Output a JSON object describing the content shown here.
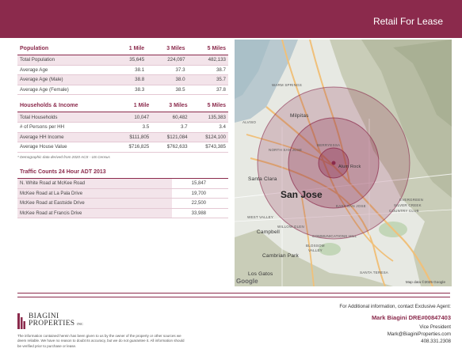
{
  "header": {
    "title": "Retail For Lease"
  },
  "demographics": {
    "population": {
      "title": "Population",
      "cols": [
        "1 Mile",
        "3 Miles",
        "5 Miles"
      ],
      "rows": [
        {
          "label": "Total Population",
          "v": [
            "35,645",
            "224,097",
            "482,133"
          ]
        },
        {
          "label": "Average Age",
          "v": [
            "38.1",
            "37.3",
            "38.7"
          ]
        },
        {
          "label": "Average Age (Male)",
          "v": [
            "38.8",
            "38.0",
            "35.7"
          ]
        },
        {
          "label": "Average Age (Female)",
          "v": [
            "38.3",
            "38.5",
            "37.8"
          ]
        }
      ]
    },
    "households": {
      "title": "Households & Income",
      "cols": [
        "1 Mile",
        "3 Miles",
        "5 Miles"
      ],
      "rows": [
        {
          "label": "Total Households",
          "v": [
            "10,047",
            "60,482",
            "135,383"
          ]
        },
        {
          "label": "# of Persons per HH",
          "v": [
            "3.5",
            "3.7",
            "3.4"
          ]
        },
        {
          "label": "Average HH Income",
          "v": [
            "$111,805",
            "$121,084",
            "$124,100"
          ]
        },
        {
          "label": "Average House Value",
          "v": [
            "$716,825",
            "$762,633",
            "$743,385"
          ]
        }
      ]
    },
    "footnote": "* Demographic data derived from 2020 ACS - US Census"
  },
  "traffic": {
    "title": "Traffic Counts 24 Hour ADT 2013",
    "rows": [
      {
        "label": "N. White Road at McKee Road",
        "value": "15,847"
      },
      {
        "label": "McKee Road at La Pala Drive",
        "value": "19,700"
      },
      {
        "label": "McKee Road at Eastside Drive",
        "value": "22,500"
      },
      {
        "label": "McKee Road at Francis Drive",
        "value": "33,988"
      }
    ]
  },
  "map": {
    "labels": {
      "warm_springs": "WARM SPRINGS",
      "milpitas": "Milpitas",
      "alviso": "ALVISO",
      "north_san_jose": "NORTH SAN JOSE",
      "berryessa": "BERRYESSA",
      "santa_clara": "Santa Clara",
      "alum_rock": "Alum Rock",
      "san_jose": "San Jose",
      "east_san_jose": "EAST SAN JOSE",
      "west_valley": "WEST VALLEY",
      "evergreen": "EVERGREEN",
      "silver_creek": "SILVER CREEK",
      "country_club": "COUNTRY CLUB",
      "willow_glen": "WILLOW GLEN",
      "campbell": "Campbell",
      "communications_hill": "COMMUNICATIONS HILL",
      "blossom_valley": "BLOSSOM",
      "blossom_valley2": "VALLEY",
      "cambrian_park": "Cambrian Park",
      "los_gatos": "Los Gatos",
      "santa_teresa": "SANTA TERESA"
    },
    "google": "Google",
    "attribution": "Map data ©2025 Google",
    "accent": "#8b2a4c"
  },
  "logo": {
    "line1": "BIAGINI",
    "line2": "PROPERTIES",
    "inc": "INC"
  },
  "disclaimer": "The information contained herein has been given to us by the owner of the property or other sources we deem reliable. We have no reason to doubt its accuracy, but we do not guarantee it. All information should be verified prior to purchase or lease.",
  "contact": {
    "intro": "For Additional information, contact Exclusive Agent:",
    "agent": "Mark Biagini DRE#00847403",
    "title": "Vice President",
    "email": "Mark@BiaginiProperties.com",
    "phone": "408.331.2308"
  }
}
